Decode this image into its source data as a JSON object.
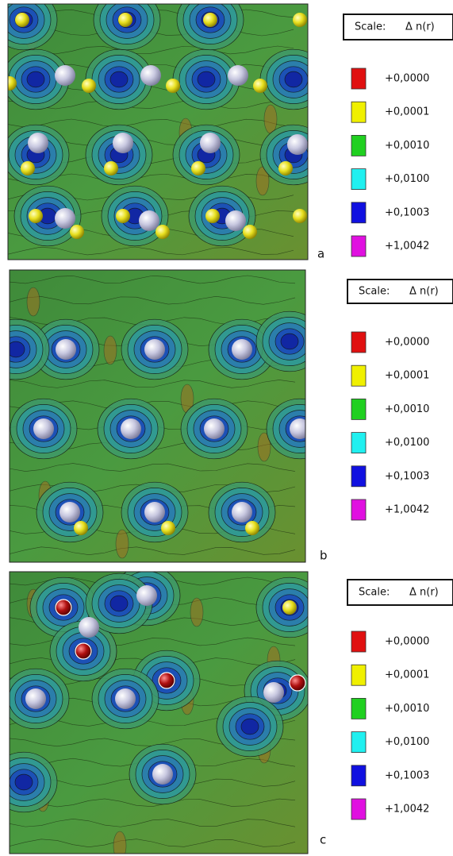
{
  "panels": [
    {
      "label": "a",
      "scale_title": "Scale:",
      "scale_symbol": "Δ n(r)",
      "legend": [
        {
          "color": "#e01010",
          "label": "+0,0000"
        },
        {
          "color": "#f0f000",
          "label": "+0,0001"
        },
        {
          "color": "#20d020",
          "label": "+0,0010"
        },
        {
          "color": "#20f0f0",
          "label": "+0,0100"
        },
        {
          "color": "#1010e0",
          "label": "+0,1003"
        },
        {
          "color": "#e010e0",
          "label": "+1,0042"
        }
      ]
    },
    {
      "label": "b",
      "scale_title": "Scale:",
      "scale_symbol": "Δ n(r)",
      "legend": [
        {
          "color": "#e01010",
          "label": "+0,0000"
        },
        {
          "color": "#f0f000",
          "label": "+0,0001"
        },
        {
          "color": "#20d020",
          "label": "+0,0010"
        },
        {
          "color": "#20f0f0",
          "label": "+0,0100"
        },
        {
          "color": "#1010e0",
          "label": "+0,1003"
        },
        {
          "color": "#e010e0",
          "label": "+1,0042"
        }
      ]
    },
    {
      "label": "c",
      "scale_title": "Scale:",
      "scale_symbol": "Δ n(r)",
      "legend": [
        {
          "color": "#e01010",
          "label": "+0,0000"
        },
        {
          "color": "#f0f000",
          "label": "+0,0001"
        },
        {
          "color": "#20d020",
          "label": "+0,0010"
        },
        {
          "color": "#20f0f0",
          "label": "+0,0100"
        },
        {
          "color": "#1010e0",
          "label": "+0,1003"
        },
        {
          "color": "#e010e0",
          "label": "+1,0042"
        }
      ]
    }
  ]
}
